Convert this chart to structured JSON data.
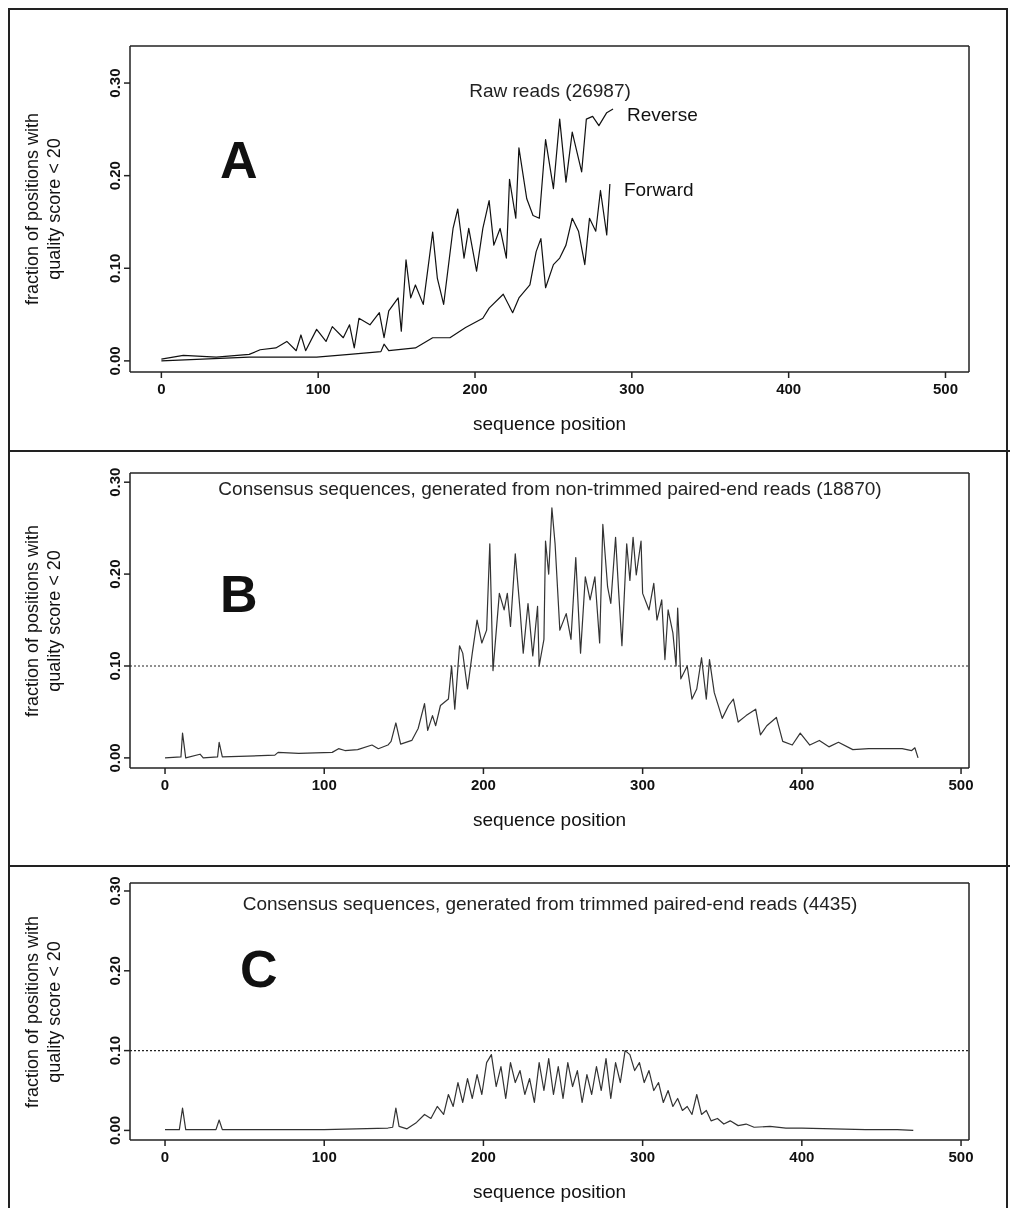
{
  "chart_data": [
    {
      "type": "line",
      "title": "Raw reads (26987)",
      "xlabel": "sequence position",
      "ylabel": "fraction of positions with quality score < 20",
      "annotations": [
        "A"
      ],
      "xlim": [
        -20,
        515
      ],
      "xticks": [
        0,
        100,
        200,
        300,
        400,
        500
      ],
      "ylim": [
        -0.012,
        0.34
      ],
      "yticks": [
        {
          "value": 0,
          "label": "0.00"
        },
        {
          "value": 0.1,
          "label": "0.10"
        },
        {
          "value": 0.2,
          "label": "0.20"
        },
        {
          "value": 0.3,
          "label": "0.30"
        }
      ],
      "grid": false,
      "marker": "none",
      "line_style": "solid",
      "series": [
        {
          "name": "Reverse",
          "color": "#111111",
          "x": [
            0,
            14,
            35,
            56,
            63,
            73,
            80,
            86,
            89,
            92,
            99,
            105,
            109,
            116,
            120,
            123,
            126,
            133,
            139,
            142,
            145,
            151,
            153,
            156,
            159,
            162,
            167,
            173,
            176,
            180,
            186,
            189,
            193,
            196,
            201,
            205,
            209,
            212,
            216,
            220,
            222,
            226,
            228,
            233,
            237,
            241,
            245,
            250,
            254,
            258,
            262,
            268,
            271,
            275,
            279,
            284,
            288
          ],
          "values": [
            0.002,
            0.006,
            0.004,
            0.007,
            0.012,
            0.014,
            0.021,
            0.011,
            0.028,
            0.011,
            0.034,
            0.021,
            0.037,
            0.025,
            0.039,
            0.014,
            0.046,
            0.039,
            0.052,
            0.025,
            0.054,
            0.068,
            0.032,
            0.109,
            0.068,
            0.082,
            0.061,
            0.139,
            0.089,
            0.061,
            0.143,
            0.164,
            0.111,
            0.143,
            0.097,
            0.143,
            0.173,
            0.125,
            0.143,
            0.111,
            0.196,
            0.154,
            0.23,
            0.175,
            0.157,
            0.154,
            0.239,
            0.186,
            0.261,
            0.193,
            0.247,
            0.204,
            0.261,
            0.264,
            0.254,
            0.268,
            0.272
          ]
        },
        {
          "name": "Forward",
          "color": "#111111",
          "x": [
            0,
            56,
            99,
            120,
            140,
            142,
            145,
            162,
            173,
            184,
            194,
            205,
            209,
            218,
            224,
            228,
            235,
            239,
            242,
            245,
            250,
            254,
            258,
            262,
            266,
            270,
            273,
            277,
            280,
            284,
            286
          ],
          "values": [
            0.0,
            0.004,
            0.004,
            0.007,
            0.01,
            0.018,
            0.011,
            0.014,
            0.025,
            0.025,
            0.036,
            0.046,
            0.057,
            0.072,
            0.052,
            0.068,
            0.082,
            0.118,
            0.132,
            0.079,
            0.104,
            0.111,
            0.125,
            0.154,
            0.14,
            0.104,
            0.154,
            0.14,
            0.184,
            0.136,
            0.191
          ]
        }
      ]
    },
    {
      "type": "line",
      "title": "Consensus sequences, generated from non-trimmed paired-end reads (18870)",
      "xlabel": "sequence position",
      "ylabel": "fraction of positions with quality score < 20",
      "annotations": [
        "B"
      ],
      "xlim": [
        -22,
        505
      ],
      "xticks": [
        0,
        100,
        200,
        300,
        400,
        500
      ],
      "ylim": [
        -0.011,
        0.31
      ],
      "yticks": [
        {
          "value": 0,
          "label": "0.00"
        },
        {
          "value": 0.1,
          "label": "0.10"
        },
        {
          "value": 0.2,
          "label": "0.20"
        },
        {
          "value": 0.3,
          "label": "0.30"
        }
      ],
      "grid": false,
      "marker": "none",
      "line_style": "solid",
      "ref_lines": [
        {
          "axis": "y",
          "value": 0.1,
          "color": "#222222",
          "line_style": "dotted"
        }
      ],
      "series": [
        {
          "color": "#333333",
          "x": [
            0,
            10,
            11,
            13,
            22,
            24,
            33,
            34,
            36,
            69,
            71,
            84,
            105,
            109,
            113,
            121,
            130,
            134,
            140,
            142,
            145,
            148,
            155,
            159,
            163,
            165,
            168,
            170,
            173,
            178,
            180,
            182,
            185,
            187,
            190,
            193,
            196,
            199,
            202,
            204,
            206,
            210,
            213,
            215,
            217,
            220,
            223,
            225,
            228,
            231,
            234,
            235,
            238,
            239,
            241,
            243,
            245,
            248,
            252,
            255,
            258,
            261,
            264,
            267,
            270,
            273,
            275,
            278,
            280,
            283,
            285,
            287,
            290,
            292,
            294,
            296,
            299,
            300,
            304,
            307,
            309,
            312,
            314,
            316,
            319,
            321,
            322,
            324,
            328,
            331,
            334,
            337,
            340,
            342,
            345,
            350,
            354,
            357,
            360,
            365,
            371,
            374,
            378,
            384,
            388,
            394,
            399,
            405,
            411,
            417,
            423,
            432,
            442,
            453,
            463,
            469,
            471,
            473
          ],
          "values": [
            0.0,
            0.001,
            0.027,
            0.0,
            0.004,
            0.0,
            0.001,
            0.017,
            0.001,
            0.003,
            0.006,
            0.005,
            0.006,
            0.01,
            0.008,
            0.009,
            0.014,
            0.01,
            0.014,
            0.018,
            0.038,
            0.015,
            0.019,
            0.032,
            0.059,
            0.03,
            0.046,
            0.035,
            0.057,
            0.064,
            0.1,
            0.053,
            0.122,
            0.114,
            0.075,
            0.114,
            0.15,
            0.125,
            0.139,
            0.233,
            0.095,
            0.179,
            0.161,
            0.179,
            0.143,
            0.222,
            0.161,
            0.114,
            0.168,
            0.111,
            0.165,
            0.1,
            0.129,
            0.236,
            0.2,
            0.272,
            0.233,
            0.139,
            0.157,
            0.129,
            0.218,
            0.114,
            0.197,
            0.172,
            0.197,
            0.125,
            0.254,
            0.186,
            0.168,
            0.24,
            0.179,
            0.122,
            0.233,
            0.193,
            0.24,
            0.199,
            0.236,
            0.179,
            0.161,
            0.19,
            0.15,
            0.172,
            0.107,
            0.161,
            0.136,
            0.1,
            0.163,
            0.086,
            0.1,
            0.064,
            0.075,
            0.109,
            0.064,
            0.107,
            0.071,
            0.043,
            0.057,
            0.064,
            0.039,
            0.046,
            0.053,
            0.025,
            0.035,
            0.044,
            0.018,
            0.014,
            0.027,
            0.014,
            0.019,
            0.012,
            0.017,
            0.009,
            0.01,
            0.01,
            0.01,
            0.008,
            0.011,
            0.0
          ]
        }
      ]
    },
    {
      "type": "line",
      "title": "Consensus sequences, generated from trimmed paired-end reads (4435)",
      "xlabel": "sequence position",
      "ylabel": "fraction of positions with quality score < 20",
      "annotations": [
        "C"
      ],
      "xlim": [
        -22,
        505
      ],
      "xticks": [
        0,
        100,
        200,
        300,
        400,
        500
      ],
      "ylim": [
        -0.012,
        0.31
      ],
      "yticks": [
        {
          "value": 0,
          "label": "0.00"
        },
        {
          "value": 0.1,
          "label": "0.10"
        },
        {
          "value": 0.2,
          "label": "0.20"
        },
        {
          "value": 0.3,
          "label": "0.30"
        }
      ],
      "grid": false,
      "marker": "none",
      "line_style": "solid",
      "ref_lines": [
        {
          "axis": "y",
          "value": 0.1,
          "color": "#222222",
          "line_style": "dotted"
        }
      ],
      "series": [
        {
          "color": "#333333",
          "x": [
            0,
            9,
            11,
            13,
            32,
            34,
            36,
            60,
            100,
            140,
            143,
            145,
            147,
            152,
            158,
            163,
            167,
            171,
            175,
            178,
            181,
            184,
            187,
            190,
            193,
            196,
            199,
            202,
            205,
            208,
            211,
            214,
            217,
            220,
            223,
            226,
            229,
            232,
            235,
            238,
            241,
            244,
            247,
            250,
            253,
            256,
            259,
            262,
            265,
            268,
            271,
            274,
            277,
            280,
            283,
            286,
            289,
            292,
            295,
            298,
            301,
            304,
            307,
            310,
            313,
            316,
            319,
            322,
            325,
            328,
            331,
            334,
            337,
            340,
            343,
            347,
            351,
            355,
            360,
            365,
            370,
            380,
            390,
            400,
            420,
            440,
            460,
            470
          ],
          "values": [
            0.001,
            0.001,
            0.028,
            0.001,
            0.001,
            0.013,
            0.001,
            0.001,
            0.001,
            0.003,
            0.004,
            0.028,
            0.005,
            0.002,
            0.01,
            0.02,
            0.015,
            0.03,
            0.02,
            0.045,
            0.03,
            0.06,
            0.035,
            0.065,
            0.04,
            0.07,
            0.045,
            0.085,
            0.095,
            0.055,
            0.08,
            0.04,
            0.085,
            0.06,
            0.075,
            0.045,
            0.065,
            0.035,
            0.085,
            0.05,
            0.09,
            0.045,
            0.08,
            0.04,
            0.085,
            0.055,
            0.075,
            0.035,
            0.07,
            0.045,
            0.08,
            0.05,
            0.09,
            0.04,
            0.085,
            0.06,
            0.1,
            0.095,
            0.075,
            0.085,
            0.06,
            0.075,
            0.05,
            0.06,
            0.035,
            0.05,
            0.03,
            0.04,
            0.025,
            0.03,
            0.02,
            0.045,
            0.02,
            0.025,
            0.012,
            0.015,
            0.008,
            0.012,
            0.006,
            0.008,
            0.004,
            0.005,
            0.003,
            0.003,
            0.002,
            0.001,
            0.001,
            0.0
          ]
        }
      ]
    }
  ]
}
